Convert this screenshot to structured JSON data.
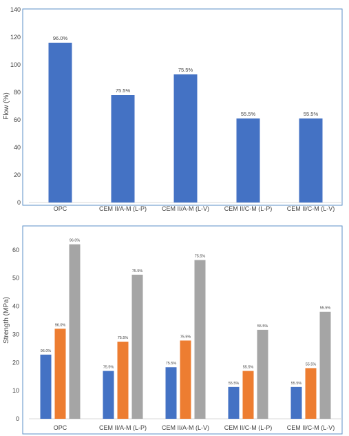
{
  "chart_data": [
    {
      "type": "bar",
      "ylabel": "Flow (%)",
      "ylim": [
        0,
        140
      ],
      "yticks": [
        0,
        20,
        40,
        60,
        80,
        100,
        120,
        140
      ],
      "grid": false,
      "categories": [
        "OPC",
        "CEM II/A-M (L-P)",
        "CEM II/A-M (L-V)",
        "CEM II/C-M (L-P)",
        "CEM II/C-M (L-V)"
      ],
      "series": [
        {
          "color": "#4472c4",
          "values": [
            116,
            78,
            93,
            61,
            61
          ],
          "labels": [
            "96.0%",
            "75.5%",
            "75.5%",
            "55.5%",
            "55.5%"
          ]
        }
      ]
    },
    {
      "type": "bar",
      "ylabel": "Strength (MPa)",
      "ylim": [
        0,
        70
      ],
      "yticks": [
        0,
        10,
        20,
        30,
        40,
        50,
        60
      ],
      "grid": false,
      "categories": [
        "OPC",
        "CEM II/A-M (L-P)",
        "CEM II/A-M (L-V)",
        "CEM II/C-M (L-P)",
        "CEM II/C-M (L-V)"
      ],
      "series": [
        {
          "color": "#4472c4",
          "values": [
            22.8,
            17,
            18.3,
            11.3,
            11.3
          ],
          "labels": [
            "96.0%",
            "75.5%",
            "75.5%",
            "55.5%",
            "55.5%"
          ]
        },
        {
          "color": "#ed7d31",
          "values": [
            32,
            27.4,
            27.8,
            17,
            18
          ],
          "labels": [
            "96.0%",
            "75.5%",
            "75.5%",
            "55.5%",
            "55.5%"
          ]
        },
        {
          "color": "#a5a5a5",
          "values": [
            62,
            51.2,
            56.4,
            31.6,
            38
          ],
          "labels": [
            "96.0%",
            "75.5%",
            "75.5%",
            "55.5%",
            "55.5%"
          ]
        }
      ]
    }
  ]
}
